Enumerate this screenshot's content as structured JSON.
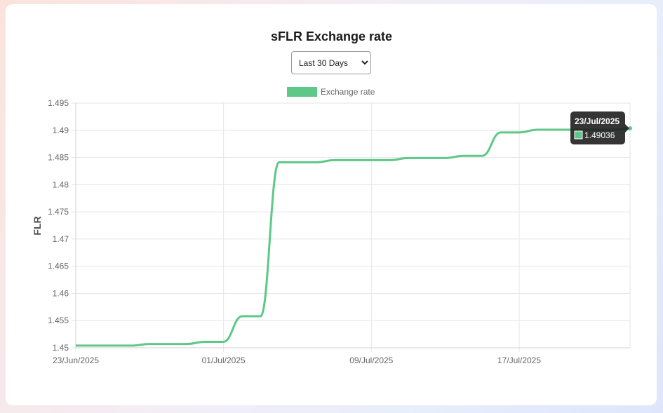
{
  "range_selector": {
    "selected": "Last 30 Days"
  },
  "colors": {
    "series": "#5dc887",
    "grid": "#e6e6e6",
    "tooltip_bg": "#1f1f1f"
  },
  "tooltip": {
    "title": "23/Jul/2025",
    "value": "1.49036"
  },
  "chart_data": {
    "type": "line",
    "title": "sFLR Exchange rate",
    "ylabel": "FLR",
    "xlabel": "",
    "legend": "top-center",
    "grid": true,
    "ylim": [
      1.45,
      1.495
    ],
    "y_ticks": [
      "1.45",
      "1.455",
      "1.46",
      "1.465",
      "1.47",
      "1.475",
      "1.48",
      "1.485",
      "1.49",
      "1.495"
    ],
    "x_tick_labels": [
      "23/Jun/2025",
      "01/Jul/2025",
      "09/Jul/2025",
      "17/Jul/2025"
    ],
    "x": [
      "23/Jun/2025",
      "24/Jun/2025",
      "25/Jun/2025",
      "26/Jun/2025",
      "27/Jun/2025",
      "28/Jun/2025",
      "29/Jun/2025",
      "30/Jun/2025",
      "01/Jul/2025",
      "02/Jul/2025",
      "03/Jul/2025",
      "04/Jul/2025",
      "05/Jul/2025",
      "06/Jul/2025",
      "07/Jul/2025",
      "08/Jul/2025",
      "09/Jul/2025",
      "10/Jul/2025",
      "11/Jul/2025",
      "12/Jul/2025",
      "13/Jul/2025",
      "14/Jul/2025",
      "15/Jul/2025",
      "16/Jul/2025",
      "17/Jul/2025",
      "18/Jul/2025",
      "19/Jul/2025",
      "20/Jul/2025",
      "21/Jul/2025",
      "22/Jul/2025",
      "23/Jul/2025"
    ],
    "series": [
      {
        "name": "Exchange rate",
        "values": [
          1.4504,
          1.4504,
          1.4504,
          1.4504,
          1.4507,
          1.4507,
          1.4507,
          1.4511,
          1.4511,
          1.4558,
          1.4558,
          1.4841,
          1.4841,
          1.4841,
          1.4845,
          1.4845,
          1.4845,
          1.4845,
          1.4849,
          1.4849,
          1.4849,
          1.4853,
          1.4853,
          1.4896,
          1.4896,
          1.4901,
          1.4901,
          1.4901,
          1.4901,
          1.4901,
          1.49036
        ]
      }
    ]
  }
}
